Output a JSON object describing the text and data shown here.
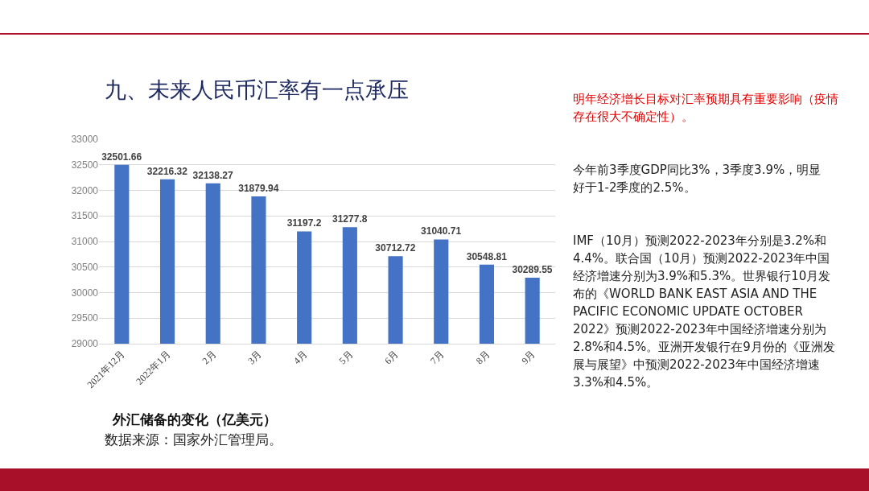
{
  "chart_data": {
    "type": "bar",
    "title": "九、未来人民币汇率有一点承压",
    "categories": [
      "2021年12月",
      "2022年1月",
      "2月",
      "3月",
      "4月",
      "5月",
      "6月",
      "7月",
      "8月",
      "9月"
    ],
    "values": [
      32501.66,
      32216.32,
      32138.27,
      31879.94,
      31197.2,
      31277.8,
      30712.72,
      31040.71,
      30548.81,
      30289.55
    ],
    "color": "#4472c4",
    "data_labels": true,
    "grid": "y",
    "legend": false,
    "ylim": [
      29000,
      33000
    ],
    "yticks": [
      29000,
      29500,
      30000,
      30500,
      31000,
      31500,
      32000,
      32500,
      33000
    ],
    "annotations": [
      "明年经济增长目标对汇率预期具有重要影响（疫情存在很大不确定性）。",
      "今年前3季度GDP同比3%，3季度3.9%，明显好于1-2季度的2.5%。",
      "IMF（10月）预测2022-2023年分别是3.2%和4.4%。联合国（10月）预测2022-2023年中国经济增速分别为3.9%和5.3%。世界银行10月发布的《WORLD BANK EAST ASIA AND THE PACIFIC ECONOMIC UPDATE OCTOBER 2022》预测2022-2023年中国经济增速分别为2.8%和4.5%。亚洲开发银行在9月份的《亚洲发展与展望》中预测2022-2023年中国经济增速3.3%和4.5%。",
      "外汇储备的变化（亿美元）",
      "数据来源：国家外汇管理局。"
    ]
  }
}
